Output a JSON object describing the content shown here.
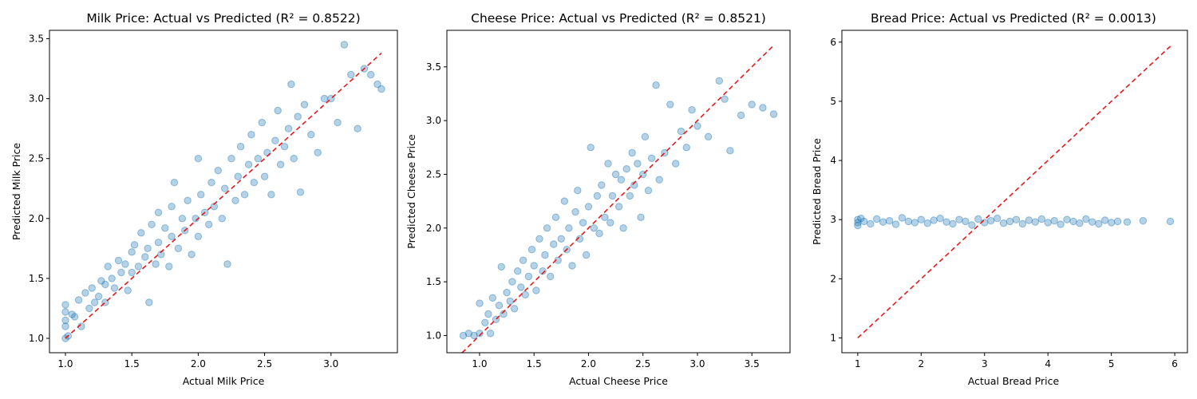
{
  "chart_data": [
    {
      "type": "scatter",
      "title": "Milk Price: Actual vs Predicted (R² = 0.8522)",
      "xlabel": "Actual Milk Price",
      "ylabel": "Predicted Milk Price",
      "xlim": [
        0.88,
        3.5
      ],
      "ylim": [
        0.88,
        3.57
      ],
      "xticks": [
        "1.0",
        "1.5",
        "2.0",
        "2.5",
        "3.0"
      ],
      "yticks": [
        "1.0",
        "1.5",
        "2.0",
        "2.5",
        "3.0",
        "3.5"
      ],
      "reference_line": {
        "from": [
          1.0,
          1.0
        ],
        "to": [
          3.38,
          3.38
        ],
        "color": "#e41a1c",
        "style": "dashed"
      },
      "point_color": "#1f77b4",
      "grid": false,
      "series": [
        {
          "x": [
            1.0,
            1.0,
            1.0,
            1.0,
            1.0,
            1.02,
            1.05,
            1.07,
            1.1,
            1.12,
            1.15,
            1.18,
            1.2,
            1.22,
            1.25,
            1.27,
            1.3,
            1.3,
            1.32,
            1.35,
            1.37,
            1.4,
            1.42,
            1.45,
            1.47,
            1.5,
            1.5,
            1.52,
            1.55,
            1.57,
            1.6,
            1.62,
            1.63,
            1.65,
            1.68,
            1.7,
            1.7,
            1.72,
            1.75,
            1.78,
            1.8,
            1.8,
            1.82,
            1.85,
            1.88,
            1.9,
            1.92,
            1.95,
            1.98,
            2.0,
            2.0,
            2.02,
            2.05,
            2.08,
            2.1,
            2.12,
            2.15,
            2.18,
            2.2,
            2.22,
            2.25,
            2.28,
            2.3,
            2.32,
            2.35,
            2.38,
            2.4,
            2.42,
            2.45,
            2.48,
            2.5,
            2.52,
            2.55,
            2.58,
            2.6,
            2.62,
            2.65,
            2.68,
            2.7,
            2.72,
            2.75,
            2.77,
            2.8,
            2.85,
            2.9,
            2.95,
            3.0,
            3.05,
            3.1,
            3.15,
            3.2,
            3.25,
            3.3,
            3.35,
            3.38
          ],
          "y": [
            1.0,
            1.1,
            1.15,
            1.22,
            1.28,
            1.02,
            1.2,
            1.18,
            1.32,
            1.1,
            1.38,
            1.25,
            1.42,
            1.3,
            1.35,
            1.48,
            1.45,
            1.3,
            1.6,
            1.5,
            1.42,
            1.65,
            1.55,
            1.62,
            1.4,
            1.72,
            1.55,
            1.78,
            1.6,
            1.88,
            1.68,
            1.75,
            1.3,
            1.95,
            1.62,
            1.8,
            2.05,
            1.7,
            1.92,
            1.6,
            1.85,
            2.1,
            2.3,
            1.75,
            2.0,
            1.9,
            2.15,
            1.7,
            2.0,
            2.5,
            1.85,
            2.2,
            2.05,
            1.95,
            2.3,
            2.1,
            2.4,
            2.0,
            2.25,
            1.62,
            2.5,
            2.15,
            2.35,
            2.6,
            2.2,
            2.45,
            2.7,
            2.3,
            2.5,
            2.8,
            2.35,
            2.55,
            2.2,
            2.65,
            2.9,
            2.45,
            2.6,
            2.75,
            3.12,
            2.5,
            2.85,
            2.22,
            2.95,
            2.7,
            2.55,
            3.0,
            3.0,
            2.8,
            3.45,
            3.2,
            2.75,
            3.25,
            3.2,
            3.12,
            3.08
          ]
        }
      ]
    },
    {
      "type": "scatter",
      "title": "Cheese Price: Actual vs Predicted (R² = 0.8521)",
      "xlabel": "Actual Cheese Price",
      "ylabel": "Predicted Cheese Price",
      "xlim": [
        0.7,
        3.85
      ],
      "ylim": [
        0.84,
        3.84
      ],
      "xticks": [
        "1.0",
        "1.5",
        "2.0",
        "2.5",
        "3.0",
        "3.5"
      ],
      "yticks": [
        "1.0",
        "1.5",
        "2.0",
        "2.5",
        "3.0",
        "3.5"
      ],
      "reference_line": {
        "from": [
          0.84,
          0.84
        ],
        "to": [
          3.7,
          3.7
        ],
        "color": "#e41a1c",
        "style": "dashed"
      },
      "point_color": "#1f77b4",
      "grid": false,
      "series": [
        {
          "x": [
            0.85,
            0.9,
            0.95,
            1.0,
            1.0,
            1.05,
            1.08,
            1.1,
            1.12,
            1.15,
            1.18,
            1.2,
            1.22,
            1.25,
            1.28,
            1.3,
            1.32,
            1.35,
            1.38,
            1.4,
            1.42,
            1.45,
            1.48,
            1.5,
            1.52,
            1.55,
            1.58,
            1.6,
            1.62,
            1.65,
            1.68,
            1.7,
            1.72,
            1.75,
            1.78,
            1.8,
            1.82,
            1.85,
            1.88,
            1.9,
            1.92,
            1.95,
            1.98,
            2.0,
            2.02,
            2.05,
            2.08,
            2.1,
            2.12,
            2.15,
            2.18,
            2.2,
            2.22,
            2.25,
            2.28,
            2.3,
            2.32,
            2.35,
            2.38,
            2.4,
            2.42,
            2.45,
            2.48,
            2.5,
            2.52,
            2.55,
            2.58,
            2.62,
            2.65,
            2.7,
            2.75,
            2.8,
            2.85,
            2.9,
            2.95,
            3.0,
            3.1,
            3.2,
            3.25,
            3.3,
            3.4,
            3.5,
            3.6,
            3.7
          ],
          "y": [
            1.0,
            1.02,
            1.0,
            1.3,
            1.02,
            1.12,
            1.2,
            1.02,
            1.35,
            1.15,
            1.28,
            1.64,
            1.2,
            1.4,
            1.32,
            1.5,
            1.25,
            1.6,
            1.45,
            1.7,
            1.38,
            1.55,
            1.8,
            1.65,
            1.42,
            1.9,
            1.6,
            1.75,
            2.0,
            1.55,
            1.85,
            2.1,
            1.7,
            1.9,
            2.25,
            1.8,
            2.0,
            1.65,
            2.15,
            2.35,
            1.9,
            2.05,
            1.75,
            2.2,
            2.75,
            2.0,
            2.3,
            1.95,
            2.4,
            2.1,
            2.6,
            2.05,
            2.3,
            2.5,
            2.2,
            2.45,
            2.0,
            2.55,
            2.3,
            2.7,
            2.4,
            2.6,
            2.1,
            2.5,
            2.85,
            2.35,
            2.65,
            3.33,
            2.45,
            2.7,
            3.15,
            2.6,
            2.9,
            2.75,
            3.1,
            2.95,
            2.85,
            3.37,
            3.2,
            2.72,
            3.05,
            3.15,
            3.12,
            3.06
          ]
        }
      ]
    },
    {
      "type": "scatter",
      "title": "Bread Price: Actual vs Predicted (R² = 0.0013)",
      "xlabel": "Actual Bread Price",
      "ylabel": "Predicted Bread Price",
      "xlim": [
        0.75,
        6.2
      ],
      "ylim": [
        0.75,
        6.2
      ],
      "xticks": [
        "1",
        "2",
        "3",
        "4",
        "5",
        "6"
      ],
      "yticks": [
        "1",
        "2",
        "3",
        "4",
        "5",
        "6"
      ],
      "reference_line": {
        "from": [
          1.0,
          1.0
        ],
        "to": [
          5.93,
          5.93
        ],
        "color": "#e41a1c",
        "style": "dashed"
      },
      "point_color": "#1f77b4",
      "grid": false,
      "series": [
        {
          "x": [
            1.0,
            1.0,
            1.0,
            1.05,
            1.1,
            1.2,
            1.3,
            1.4,
            1.5,
            1.6,
            1.7,
            1.8,
            1.9,
            2.0,
            2.1,
            2.2,
            2.3,
            2.4,
            2.5,
            2.6,
            2.7,
            2.8,
            2.9,
            3.0,
            3.1,
            3.2,
            3.3,
            3.4,
            3.5,
            3.6,
            3.7,
            3.8,
            3.9,
            4.0,
            4.1,
            4.2,
            4.3,
            4.4,
            4.5,
            4.6,
            4.7,
            4.8,
            4.9,
            5.0,
            5.1,
            5.25,
            5.5,
            5.93
          ],
          "y": [
            2.9,
            3.0,
            2.95,
            3.02,
            2.97,
            2.93,
            3.01,
            2.96,
            2.98,
            2.92,
            3.03,
            2.97,
            2.95,
            3.0,
            2.94,
            2.99,
            3.02,
            2.96,
            2.93,
            3.0,
            2.97,
            2.91,
            3.01,
            2.95,
            2.98,
            3.02,
            2.94,
            2.97,
            3.0,
            2.93,
            2.99,
            2.96,
            3.01,
            2.95,
            2.98,
            2.92,
            3.0,
            2.97,
            2.94,
            3.01,
            2.96,
            2.93,
            2.99,
            2.95,
            2.97,
            2.96,
            2.98,
            2.97
          ]
        }
      ]
    }
  ]
}
